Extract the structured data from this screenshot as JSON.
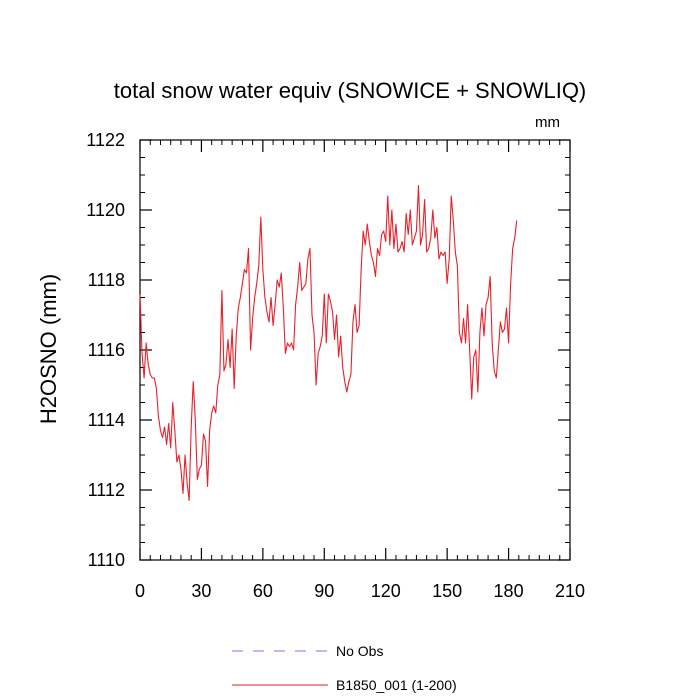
{
  "chart_data": {
    "type": "line",
    "title": "total snow water equiv (SNOWICE + SNOWLIQ)",
    "units": "mm",
    "xlabel": "",
    "ylabel": "H2OSNO  (mm)",
    "xlim": [
      0,
      210
    ],
    "ylim": [
      1110,
      1122
    ],
    "x_ticks": [
      "0",
      "30",
      "60",
      "90",
      "120",
      "150",
      "180",
      "210"
    ],
    "x_tick_values": [
      0,
      30,
      60,
      90,
      120,
      150,
      180,
      210
    ],
    "y_ticks": [
      "1110",
      "1112",
      "1114",
      "1116",
      "1118",
      "1120",
      "1122"
    ],
    "y_tick_values": [
      1110,
      1112,
      1114,
      1116,
      1118,
      1120,
      1122
    ],
    "legend": [
      {
        "label": "No Obs",
        "color": "#7777dd",
        "style": "dashed"
      },
      {
        "label": "B1850_001 (1-200)",
        "color": "#e8202a",
        "style": "solid"
      }
    ],
    "series": [
      {
        "name": "B1850_001 (1-200)",
        "color": "#e8202a",
        "x_start": 0,
        "x_step": 1,
        "values": [
          1117.6,
          1115.9,
          1115.2,
          1116.2,
          1115.6,
          1115.3,
          1115.2,
          1115.2,
          1114.9,
          1114.1,
          1113.7,
          1113.5,
          1113.8,
          1113.3,
          1113.9,
          1113.2,
          1114.5,
          1113.7,
          1112.8,
          1113.0,
          1112.6,
          1111.9,
          1113.0,
          1112.2,
          1111.7,
          1113.8,
          1115.1,
          1114.0,
          1112.3,
          1112.6,
          1112.7,
          1113.6,
          1113.4,
          1112.1,
          1113.7,
          1114.2,
          1114.4,
          1114.2,
          1115.0,
          1115.3,
          1117.7,
          1115.4,
          1115.6,
          1116.3,
          1115.5,
          1116.6,
          1114.9,
          1116.4,
          1117.2,
          1117.5,
          1117.9,
          1118.3,
          1118.2,
          1118.9,
          1116.0,
          1116.9,
          1117.5,
          1117.9,
          1118.4,
          1119.8,
          1118.3,
          1117.5,
          1117.1,
          1116.8,
          1117.5,
          1116.7,
          1117.3,
          1118.0,
          1117.8,
          1118.2,
          1117.2,
          1115.9,
          1116.2,
          1116.1,
          1116.2,
          1116.0,
          1117.3,
          1117.8,
          1118.5,
          1117.7,
          1117.8,
          1117.9,
          1118.6,
          1118.9,
          1117.0,
          1116.5,
          1115.0,
          1115.9,
          1116.1,
          1116.4,
          1117.6,
          1116.2,
          1117.6,
          1117.4,
          1117.1,
          1116.3,
          1117.0,
          1115.8,
          1116.4,
          1115.5,
          1115.1,
          1114.8,
          1115.1,
          1115.3,
          1116.8,
          1117.3,
          1116.5,
          1116.7,
          1118.3,
          1119.4,
          1119.0,
          1119.6,
          1119.1,
          1118.7,
          1118.5,
          1118.1,
          1118.9,
          1118.7,
          1119.3,
          1119.4,
          1119.1,
          1120.4,
          1119.0,
          1120.0,
          1118.9,
          1119.6,
          1118.8,
          1118.9,
          1119.1,
          1118.8,
          1119.9,
          1119.3,
          1120.0,
          1119.0,
          1119.2,
          1119.4,
          1120.7,
          1119.0,
          1119.3,
          1120.3,
          1118.8,
          1118.9,
          1119.2,
          1120.0,
          1119.2,
          1119.5,
          1118.6,
          1118.8,
          1118.7,
          1118.8,
          1117.9,
          1118.6,
          1120.4,
          1119.7,
          1118.8,
          1118.4,
          1116.5,
          1116.2,
          1116.9,
          1116.2,
          1117.3,
          1116.0,
          1114.6,
          1115.8,
          1116.0,
          1114.8,
          1116.5,
          1117.2,
          1116.4,
          1117.3,
          1117.5,
          1118.1,
          1116.2,
          1115.4,
          1115.2,
          1116.0,
          1116.8,
          1116.5,
          1116.6,
          1117.2,
          1116.2,
          1117.9,
          1118.9,
          1119.2,
          1119.7
        ]
      }
    ]
  }
}
